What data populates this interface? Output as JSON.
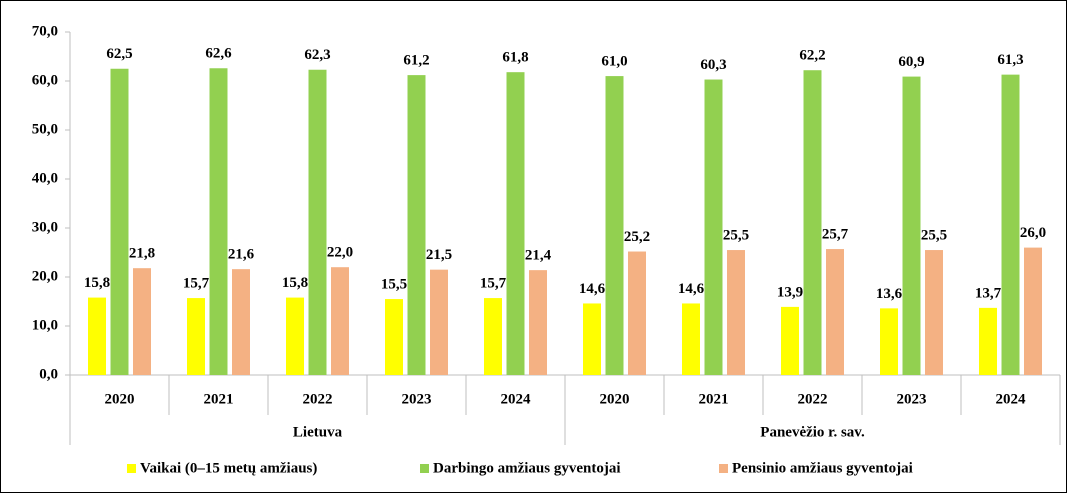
{
  "chart_data": {
    "type": "bar",
    "groups": [
      {
        "name": "Lietuva",
        "categories": [
          "2020",
          "2021",
          "2022",
          "2023",
          "2024"
        ]
      },
      {
        "name": "Panevėžio r. sav.",
        "categories": [
          "2020",
          "2021",
          "2022",
          "2023",
          "2024"
        ]
      }
    ],
    "series": [
      {
        "name": "Vaikai (0–15 metų amžiaus)",
        "color": "#ffff00",
        "values": [
          15.8,
          15.7,
          15.8,
          15.5,
          15.7,
          14.6,
          14.6,
          13.9,
          13.6,
          13.7
        ],
        "value_labels": [
          "15,8",
          "15,7",
          "15,8",
          "15,5",
          "15,7",
          "14,6",
          "14,6",
          "13,9",
          "13,6",
          "13,7"
        ]
      },
      {
        "name": "Darbingo amžiaus gyventojai",
        "color": "#92d050",
        "values": [
          62.5,
          62.6,
          62.3,
          61.2,
          61.8,
          61.0,
          60.3,
          62.2,
          60.9,
          61.3
        ],
        "value_labels": [
          "62,5",
          "62,6",
          "62,3",
          "61,2",
          "61,8",
          "61,0",
          "60,3",
          "62,2",
          "60,9",
          "61,3"
        ]
      },
      {
        "name": "Pensinio amžiaus gyventojai",
        "color": "#f4b183",
        "values": [
          21.8,
          21.6,
          22.0,
          21.5,
          21.4,
          25.2,
          25.5,
          25.7,
          25.5,
          26.0
        ],
        "value_labels": [
          "21,8",
          "21,6",
          "22,0",
          "21,5",
          "21,4",
          "25,2",
          "25,5",
          "25,7",
          "25,5",
          "26,0"
        ]
      }
    ],
    "ylim": [
      0,
      70
    ],
    "yticks": [
      {
        "value": 0,
        "label": "0,0"
      },
      {
        "value": 10,
        "label": "10,0"
      },
      {
        "value": 20,
        "label": "20,0"
      },
      {
        "value": 30,
        "label": "30,0"
      },
      {
        "value": 40,
        "label": "40,0"
      },
      {
        "value": 50,
        "label": "50,0"
      },
      {
        "value": 60,
        "label": "60,0"
      },
      {
        "value": 70,
        "label": "70,0"
      }
    ],
    "legend": "bottom"
  }
}
